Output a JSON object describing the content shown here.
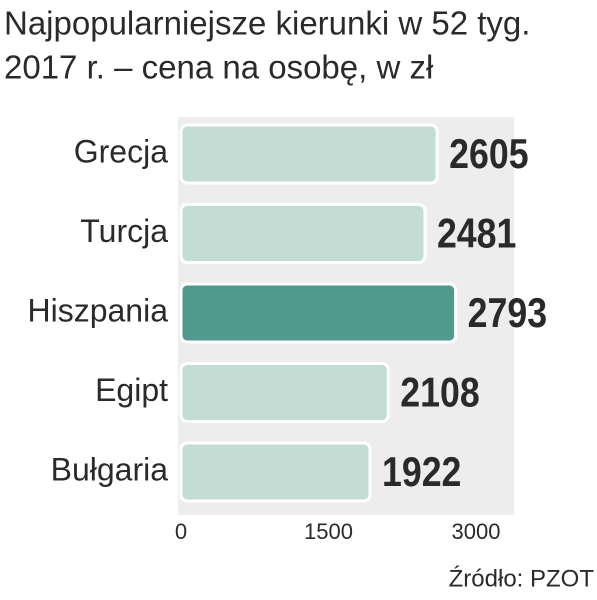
{
  "chart_data": {
    "type": "barh",
    "title": [
      "Najpopularniejsze kierunki w 52 tyg.",
      "2017 r. – cena na osobę, w zł"
    ],
    "categories": [
      "Grecja",
      "Turcja",
      "Hiszpania",
      "Egipt",
      "Bułgaria"
    ],
    "values": [
      2605,
      2481,
      2793,
      2108,
      1922
    ],
    "colors": [
      "#c3dcd4",
      "#c3dcd4",
      "#4f9a8c",
      "#c3dcd4",
      "#c3dcd4"
    ],
    "xlim": [
      0,
      3000
    ],
    "xticks": [
      0,
      1500,
      3000
    ],
    "source": "Źródło: PZOT"
  }
}
